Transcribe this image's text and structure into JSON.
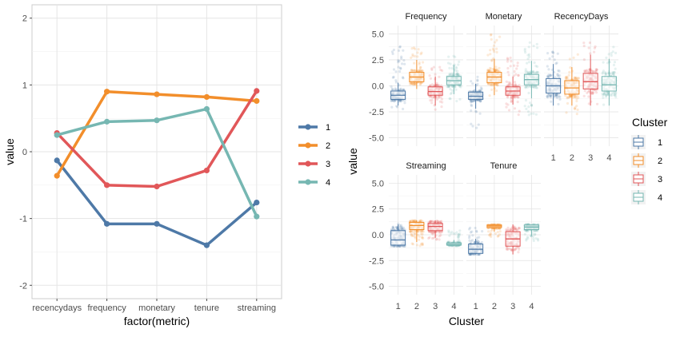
{
  "chart_data": [
    {
      "type": "line",
      "xlabel": "factor(metric)",
      "ylabel": "value",
      "categories": [
        "recencydays",
        "frequency",
        "monetary",
        "tenure",
        "streaming"
      ],
      "ylim": [
        -2.2,
        2.2
      ],
      "yticks": [
        -2,
        -1,
        0,
        1,
        2
      ],
      "grid": true,
      "legend_position": "right",
      "series": [
        {
          "name": "1",
          "color": "#4e79a7",
          "values": [
            -0.13,
            -1.08,
            -1.08,
            -1.4,
            -0.76
          ]
        },
        {
          "name": "2",
          "color": "#f28e2b",
          "values": [
            -0.36,
            0.9,
            0.86,
            0.82,
            0.76
          ]
        },
        {
          "name": "3",
          "color": "#e15759",
          "values": [
            0.28,
            -0.5,
            -0.52,
            -0.28,
            0.91
          ]
        },
        {
          "name": "4",
          "color": "#76b7b2",
          "values": [
            0.25,
            0.45,
            0.47,
            0.64,
            -0.97
          ]
        }
      ]
    },
    {
      "type": "boxplot",
      "xlabel": "Cluster",
      "ylabel": "value",
      "categories": [
        "1",
        "2",
        "3",
        "4"
      ],
      "ylim": [
        -5.8,
        5.8
      ],
      "yticks": [
        -5.0,
        -2.5,
        0.0,
        2.5,
        5.0
      ],
      "ytick_labels": [
        "-5.0",
        "-2.5",
        "0.0",
        "2.5",
        "5.0"
      ],
      "legend_title": "Cluster",
      "legend_position": "right",
      "grid": true,
      "panels": [
        {
          "title": "Frequency",
          "boxes": [
            {
              "cluster": "1",
              "q1": -1.3,
              "median": -0.9,
              "q3": -0.5,
              "whisker_low": -1.9,
              "whisker_high": 0.3,
              "jitter_low": -2.3,
              "jitter_high": 3.8
            },
            {
              "cluster": "2",
              "q1": 0.4,
              "median": 0.85,
              "q3": 1.3,
              "whisker_low": -0.3,
              "whisker_high": 2.5,
              "jitter_low": -0.3,
              "jitter_high": 4.0
            },
            {
              "cluster": "3",
              "q1": -0.9,
              "median": -0.55,
              "q3": -0.1,
              "whisker_low": -1.9,
              "whisker_high": 0.9,
              "jitter_low": -2.3,
              "jitter_high": 1.8
            },
            {
              "cluster": "4",
              "q1": 0.1,
              "median": 0.5,
              "q3": 0.9,
              "whisker_low": -0.8,
              "whisker_high": 2.0,
              "jitter_low": -1.6,
              "jitter_high": 3.0
            }
          ]
        },
        {
          "title": "Monetary",
          "boxes": [
            {
              "cluster": "1",
              "q1": -1.3,
              "median": -1.0,
              "q3": -0.6,
              "whisker_low": -2.2,
              "whisker_high": 0.2,
              "jitter_low": -4.2,
              "jitter_high": 1.0
            },
            {
              "cluster": "2",
              "q1": 0.3,
              "median": 0.85,
              "q3": 1.3,
              "whisker_low": -0.9,
              "whisker_high": 2.6,
              "jitter_low": -1.2,
              "jitter_high": 5.0
            },
            {
              "cluster": "3",
              "q1": -0.9,
              "median": -0.5,
              "q3": -0.1,
              "whisker_low": -1.8,
              "whisker_high": 0.9,
              "jitter_low": -2.8,
              "jitter_high": 2.8
            },
            {
              "cluster": "4",
              "q1": 0.1,
              "median": 0.6,
              "q3": 1.1,
              "whisker_low": -1.2,
              "whisker_high": 2.4,
              "jitter_low": -2.8,
              "jitter_high": 4.2
            }
          ]
        },
        {
          "title": "RecencyDays",
          "boxes": [
            {
              "cluster": "1",
              "q1": -0.7,
              "median": 0.0,
              "q3": 0.7,
              "whisker_low": -1.9,
              "whisker_high": 2.1,
              "jitter_low": -1.9,
              "jitter_high": 3.5
            },
            {
              "cluster": "2",
              "q1": -0.8,
              "median": -0.2,
              "q3": 0.5,
              "whisker_low": -1.9,
              "whisker_high": 1.8,
              "jitter_low": -2.8,
              "jitter_high": 3.2
            },
            {
              "cluster": "3",
              "q1": -0.3,
              "median": 0.4,
              "q3": 1.2,
              "whisker_low": -1.9,
              "whisker_high": 3.0,
              "jitter_low": -1.9,
              "jitter_high": 4.2
            },
            {
              "cluster": "4",
              "q1": -0.5,
              "median": 0.1,
              "q3": 0.9,
              "whisker_low": -1.9,
              "whisker_high": 2.6,
              "jitter_low": -1.9,
              "jitter_high": 4.2
            }
          ]
        },
        {
          "title": "Streaming",
          "boxes": [
            {
              "cluster": "1",
              "q1": -1.0,
              "median": -0.5,
              "q3": 0.4,
              "whisker_low": -1.1,
              "whisker_high": 1.0,
              "jitter_low": -1.1,
              "jitter_high": 1.1
            },
            {
              "cluster": "2",
              "q1": 0.5,
              "median": 0.9,
              "q3": 1.2,
              "whisker_low": -0.7,
              "whisker_high": 1.4,
              "jitter_low": -1.1,
              "jitter_high": 1.4
            },
            {
              "cluster": "3",
              "q1": 0.4,
              "median": 0.8,
              "q3": 1.1,
              "whisker_low": -0.3,
              "whisker_high": 1.4,
              "jitter_low": -0.5,
              "jitter_high": 1.4
            },
            {
              "cluster": "4",
              "q1": -1.0,
              "median": -0.95,
              "q3": -0.8,
              "whisker_low": -1.1,
              "whisker_high": -0.5,
              "jitter_low": -1.1,
              "jitter_high": 0.4
            }
          ]
        },
        {
          "title": "Tenure",
          "boxes": [
            {
              "cluster": "1",
              "q1": -1.8,
              "median": -1.4,
              "q3": -0.9,
              "whisker_low": -1.9,
              "whisker_high": -0.4,
              "jitter_low": -1.9,
              "jitter_high": 0.9
            },
            {
              "cluster": "2",
              "q1": 0.7,
              "median": 0.85,
              "q3": 0.95,
              "whisker_low": 0.3,
              "whisker_high": 1.0,
              "jitter_low": -0.2,
              "jitter_high": 1.0
            },
            {
              "cluster": "3",
              "q1": -1.1,
              "median": -0.4,
              "q3": 0.3,
              "whisker_low": -1.9,
              "whisker_high": 1.0,
              "jitter_low": -1.9,
              "jitter_high": 1.0
            },
            {
              "cluster": "4",
              "q1": 0.5,
              "median": 0.75,
              "q3": 0.95,
              "whisker_low": -0.1,
              "whisker_high": 1.0,
              "jitter_low": -0.6,
              "jitter_high": 1.0
            }
          ]
        }
      ]
    }
  ],
  "legend_left": {
    "entries": [
      "1",
      "2",
      "3",
      "4"
    ]
  },
  "legend_right": {
    "title": "Cluster",
    "entries": [
      "1",
      "2",
      "3",
      "4"
    ]
  }
}
